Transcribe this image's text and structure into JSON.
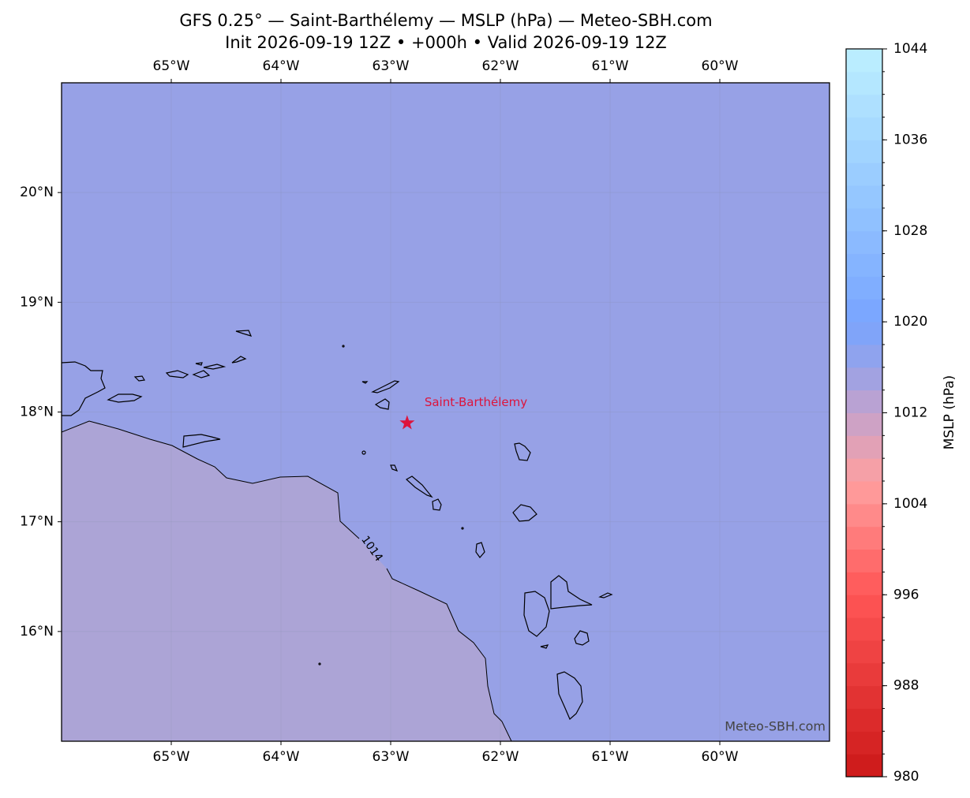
{
  "map": {
    "title": "GFS 0.25° — Saint-Barthélemy — MSLP (hPa) — Meteo-SBH.com",
    "subtitle": "Init 2026-09-19 12Z • +000h • Valid 2026-09-19 12Z",
    "xlim": [
      -66,
      -59
    ],
    "ylim": [
      15,
      21
    ],
    "xticks": [
      {
        "value": -65,
        "label": "65°W"
      },
      {
        "value": -64,
        "label": "64°W"
      },
      {
        "value": -63,
        "label": "63°W"
      },
      {
        "value": -62,
        "label": "62°W"
      },
      {
        "value": -61,
        "label": "61°W"
      },
      {
        "value": -60,
        "label": "60°W"
      }
    ],
    "yticks": [
      {
        "value": 20,
        "label": "20°N"
      },
      {
        "value": 19,
        "label": "19°N"
      },
      {
        "value": 18,
        "label": "18°N"
      },
      {
        "value": 17,
        "label": "17°N"
      },
      {
        "value": 16,
        "label": "16°N"
      }
    ],
    "grid": true,
    "contour": 1014,
    "marker": {
      "name": "Saint-Barthélemy",
      "lon": -62.85,
      "lat": 17.9,
      "color": "#dc143c"
    },
    "watermark": "Meteo-SBH.com",
    "colorbar": {
      "label": "MSLP (hPa)",
      "range": [
        980,
        1044
      ],
      "ticks": [
        980,
        988,
        996,
        1004,
        1012,
        1020,
        1028,
        1036,
        1044
      ],
      "minor_tick_step": 2,
      "stops": [
        [
          980,
          "#cc1818"
        ],
        [
          996,
          "#ff5656"
        ],
        [
          1006,
          "#ffa0a0"
        ],
        [
          1012,
          "#c4a2cc"
        ],
        [
          1016,
          "#96a2e8"
        ],
        [
          1020,
          "#78a4ff"
        ],
        [
          1032,
          "#98caff"
        ],
        [
          1044,
          "#bdf0ff"
        ]
      ]
    }
  }
}
